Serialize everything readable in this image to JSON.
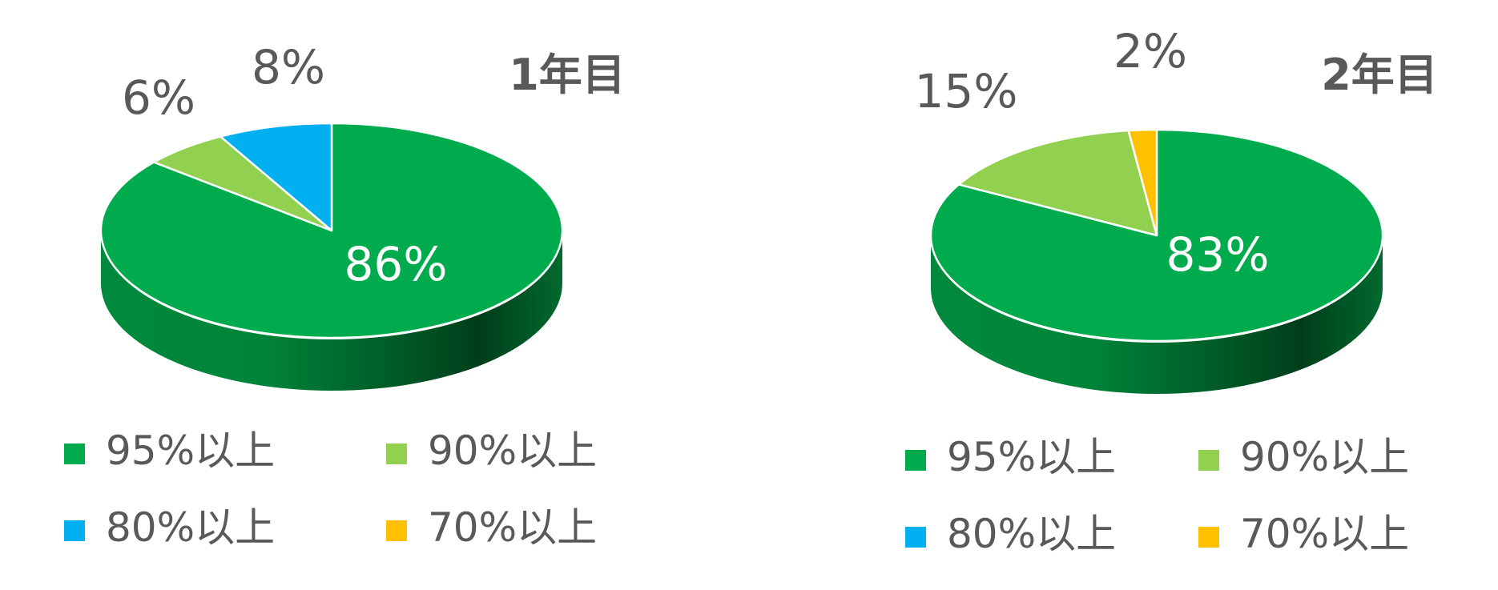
{
  "chart_data": [
    {
      "type": "pie",
      "style": "3d",
      "title": "1年目",
      "categories": [
        "95%以上",
        "90%以上",
        "80%以上",
        "70%以上"
      ],
      "values": [
        86,
        6,
        8,
        0
      ],
      "data_labels": [
        "86%",
        "6%",
        "8%",
        ""
      ],
      "colors": [
        "#00AB4E",
        "#92D050",
        "#00B0F0",
        "#FFC000"
      ],
      "legend": "bottom"
    },
    {
      "type": "pie",
      "style": "3d",
      "title": "2年目",
      "categories": [
        "95%以上",
        "90%以上",
        "80%以上",
        "70%以上"
      ],
      "values": [
        83,
        15,
        0,
        2
      ],
      "data_labels": [
        "83%",
        "15%",
        "",
        "2%"
      ],
      "colors": [
        "#00AB4E",
        "#92D050",
        "#00B0F0",
        "#FFC000"
      ],
      "legend": "bottom"
    }
  ]
}
